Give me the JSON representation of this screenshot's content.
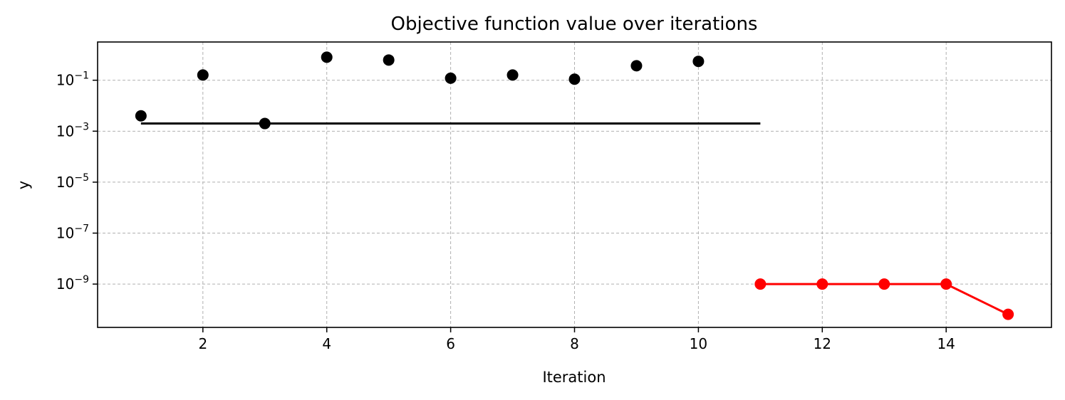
{
  "chart_data": {
    "type": "scatter",
    "title": "Objective function value over iterations",
    "xlabel": "Iteration",
    "ylabel": "y",
    "xlim": [
      0.3,
      15.7
    ],
    "ylim_log10": [
      -10.7,
      0.5
    ],
    "yscale": "log",
    "grid": true,
    "x_ticks": [
      2,
      4,
      6,
      8,
      10,
      12,
      14
    ],
    "y_ticks": [
      {
        "base": "10",
        "exp": "−1",
        "log10": -1
      },
      {
        "base": "10",
        "exp": "−3",
        "log10": -3
      },
      {
        "base": "10",
        "exp": "−5",
        "log10": -5
      },
      {
        "base": "10",
        "exp": "−7",
        "log10": -7
      },
      {
        "base": "10",
        "exp": "−9",
        "log10": -9
      }
    ],
    "series": [
      {
        "style": "markers",
        "color": "#000000",
        "x": [
          1,
          2,
          3,
          4,
          5,
          6,
          7,
          8,
          9,
          10
        ],
        "y": [
          0.004,
          0.16,
          0.002,
          0.8,
          0.62,
          0.12,
          0.16,
          0.11,
          0.37,
          0.55
        ]
      },
      {
        "style": "hline",
        "color": "#000000",
        "x": [
          1,
          11
        ],
        "y": [
          0.002,
          0.002
        ]
      },
      {
        "style": "line-markers",
        "color": "#ff0000",
        "x": [
          11,
          12,
          13,
          14,
          15
        ],
        "y": [
          1e-09,
          1e-09,
          1e-09,
          1e-09,
          6.5e-11
        ]
      }
    ]
  }
}
